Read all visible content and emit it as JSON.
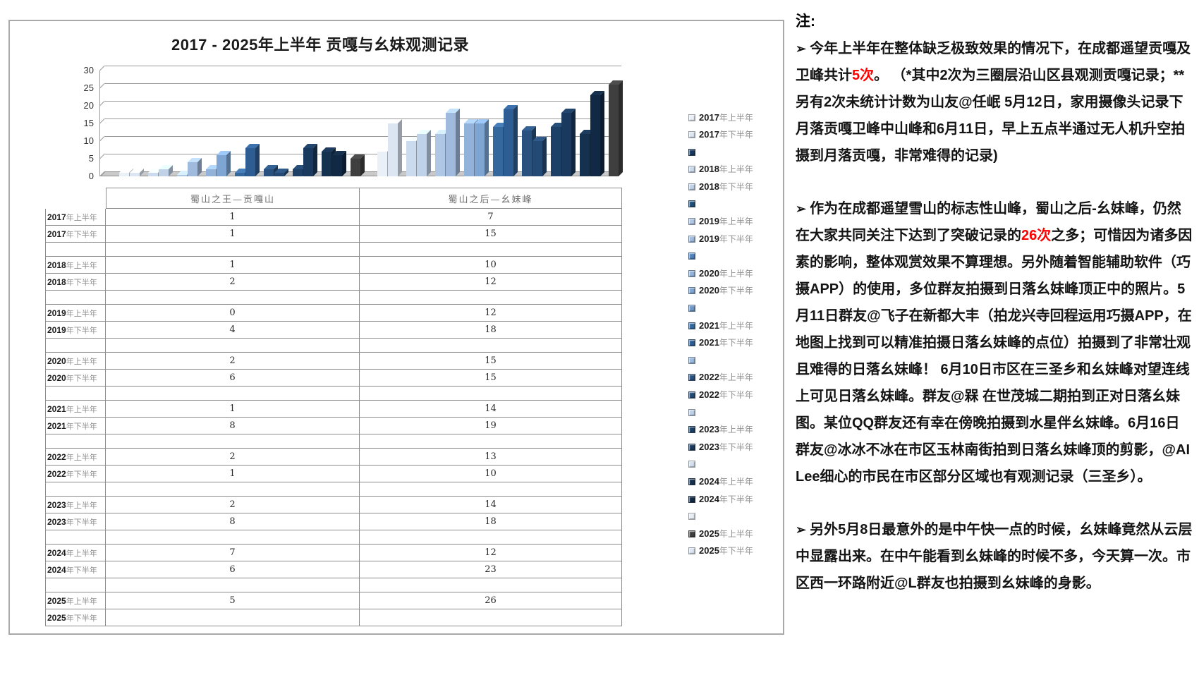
{
  "chart_data": {
    "type": "bar",
    "title": "2017 - 2025年上半年 贡嘎与幺妹观测记录",
    "categories": [
      "蜀山之王—贡嘎山",
      "蜀山之后—幺妹峰"
    ],
    "xlabel": "",
    "ylabel": "",
    "ylim": [
      0,
      30
    ],
    "y_ticks": [
      0,
      5,
      10,
      15,
      20,
      25,
      30
    ],
    "grid": true,
    "style": "3d-bar",
    "legend_position": "right",
    "series": [
      {
        "name": "2017年上半年",
        "color": "#eaf0f8",
        "values": [
          1,
          7
        ]
      },
      {
        "name": "2017年下半年",
        "color": "#dce6f2",
        "values": [
          1,
          15
        ]
      },
      {
        "name": "",
        "color": "#17375e",
        "values": [
          null,
          null
        ],
        "spacer": true
      },
      {
        "name": "2018年上半年",
        "color": "#ccdaee",
        "values": [
          1,
          10
        ]
      },
      {
        "name": "2018年下半年",
        "color": "#c0d2e8",
        "values": [
          2,
          12
        ]
      },
      {
        "name": "",
        "color": "#1f4e79",
        "values": [
          null,
          null
        ],
        "spacer": true
      },
      {
        "name": "2019年上半年",
        "color": "#afc6e4",
        "values": [
          0,
          12
        ]
      },
      {
        "name": "2019年下半年",
        "color": "#9fbadd",
        "values": [
          4,
          18
        ]
      },
      {
        "name": "",
        "color": "#4f81bd",
        "values": [
          null,
          null
        ],
        "spacer": true
      },
      {
        "name": "2020年上半年",
        "color": "#92b2da",
        "values": [
          2,
          15
        ]
      },
      {
        "name": "2020年下半年",
        "color": "#7fa5d2",
        "values": [
          6,
          15
        ]
      },
      {
        "name": "",
        "color": "#6f98c9",
        "values": [
          null,
          null
        ],
        "spacer": true
      },
      {
        "name": "2021年上半年",
        "color": "#35699e",
        "values": [
          1,
          14
        ]
      },
      {
        "name": "2021年下半年",
        "color": "#2e5d94",
        "values": [
          8,
          19
        ]
      },
      {
        "name": "",
        "color": "#9ab9de",
        "values": [
          null,
          null
        ],
        "spacer": true
      },
      {
        "name": "2022年上半年",
        "color": "#28517f",
        "values": [
          2,
          13
        ]
      },
      {
        "name": "2022年下半年",
        "color": "#234a75",
        "values": [
          1,
          10
        ]
      },
      {
        "name": "",
        "color": "#bdd0e8",
        "values": [
          null,
          null
        ],
        "spacer": true
      },
      {
        "name": "2023年上半年",
        "color": "#1d4067",
        "values": [
          2,
          14
        ]
      },
      {
        "name": "2023年下半年",
        "color": "#193a5e",
        "values": [
          8,
          18
        ]
      },
      {
        "name": "",
        "color": "#d4e0ef",
        "values": [
          null,
          null
        ],
        "spacer": true
      },
      {
        "name": "2024年上半年",
        "color": "#153150",
        "values": [
          7,
          12
        ]
      },
      {
        "name": "2024年下半年",
        "color": "#112944",
        "values": [
          6,
          23
        ]
      },
      {
        "name": "",
        "color": "#e7edf6",
        "values": [
          null,
          null
        ],
        "spacer": true
      },
      {
        "name": "2025年上半年",
        "color": "#3f3f3f",
        "values": [
          5,
          26
        ]
      },
      {
        "name": "2025年下半年",
        "color": "#dbe4f0",
        "values": [
          null,
          null
        ]
      }
    ]
  },
  "table": {
    "rows": [
      {
        "label": "2017年上半年",
        "values": [
          "1",
          "7"
        ]
      },
      {
        "label": "2017年下半年",
        "values": [
          "1",
          "15"
        ]
      },
      {
        "label": "",
        "values": [
          "",
          ""
        ]
      },
      {
        "label": "2018年上半年",
        "values": [
          "1",
          "10"
        ]
      },
      {
        "label": "2018年下半年",
        "values": [
          "2",
          "12"
        ]
      },
      {
        "label": "",
        "values": [
          "",
          ""
        ]
      },
      {
        "label": "2019年上半年",
        "values": [
          "0",
          "12"
        ]
      },
      {
        "label": "2019年下半年",
        "values": [
          "4",
          "18"
        ]
      },
      {
        "label": "",
        "values": [
          "",
          ""
        ]
      },
      {
        "label": "2020年上半年",
        "values": [
          "2",
          "15"
        ]
      },
      {
        "label": "2020年下半年",
        "values": [
          "6",
          "15"
        ]
      },
      {
        "label": "",
        "values": [
          "",
          ""
        ]
      },
      {
        "label": "2021年上半年",
        "values": [
          "1",
          "14"
        ]
      },
      {
        "label": "2021年下半年",
        "values": [
          "8",
          "19"
        ]
      },
      {
        "label": "",
        "values": [
          "",
          ""
        ]
      },
      {
        "label": "2022年上半年",
        "values": [
          "2",
          "13"
        ]
      },
      {
        "label": "2022年下半年",
        "values": [
          "1",
          "10"
        ]
      },
      {
        "label": "",
        "values": [
          "",
          ""
        ]
      },
      {
        "label": "2023年上半年",
        "values": [
          "2",
          "14"
        ]
      },
      {
        "label": "2023年下半年",
        "values": [
          "8",
          "18"
        ]
      },
      {
        "label": "",
        "values": [
          "",
          ""
        ]
      },
      {
        "label": "2024年上半年",
        "values": [
          "7",
          "12"
        ]
      },
      {
        "label": "2024年下半年",
        "values": [
          "6",
          "23"
        ]
      },
      {
        "label": "",
        "values": [
          "",
          ""
        ]
      },
      {
        "label": "2025年上半年",
        "values": [
          "5",
          "26"
        ]
      },
      {
        "label": "2025年下半年",
        "values": [
          "",
          ""
        ]
      }
    ]
  },
  "note": {
    "heading": "注:",
    "bullet": "➢ ",
    "accent_color": "#ff0000",
    "paragraphs": [
      {
        "segments": [
          {
            "text": "今年上半年在整体缺乏极致效果的情况下，在成都遥望贡嘎及卫峰共计"
          },
          {
            "text": "5次",
            "em": true
          },
          {
            "text": "。 （*其中2次为三圈层沿山区县观测贡嘎记录；**另有2次未统计计数为山友@任岷 5月12日，家用摄像头记录下月落贡嘎卫峰中山峰和6月11日，早上五点半通过无人机升空拍摄到月落贡嘎，非常难得的记录)"
          }
        ]
      },
      {
        "segments": [
          {
            "text": "作为在成都遥望雪山的标志性山峰，蜀山之后-幺妹峰，仍然在大家共同关注下达到了突破记录的"
          },
          {
            "text": "26次",
            "em": true
          },
          {
            "text": "之多；可惜因为诸多因素的影响，整体观赏效果不算理想。另外随着智能辅助软件（巧摄APP）的使用，多位群友拍摄到日落幺妹峰顶正中的照片。5月11日群友@飞子在新都大丰（拍龙兴寺回程运用巧摄APP，在地图上找到可以精准拍摄日落幺妹峰的点位）拍摄到了非常壮观且难得的日落幺妹峰！ 6月10日市区在三圣乡和幺妹峰对望连线上可见日落幺妹峰。群友@槑 在世茂城二期拍到正对日落幺妹图。某位QQ群友还有幸在傍晚拍摄到水星伴幺妹峰。6月16日群友@冰冰不冰在市区玉林南街拍到日落幺妹峰顶的剪影，@AILee细心的市民在市区部分区域也有观测记录（三圣乡）。"
          }
        ]
      },
      {
        "segments": [
          {
            "text": "另外5月8日最意外的是中午快一点的时候，幺妹峰竟然从云层中显露出来。在中午能看到幺妹峰的时候不多，今天算一次。市区西一环路附近@L群友也拍摄到幺妹峰的身影。"
          }
        ]
      }
    ]
  }
}
